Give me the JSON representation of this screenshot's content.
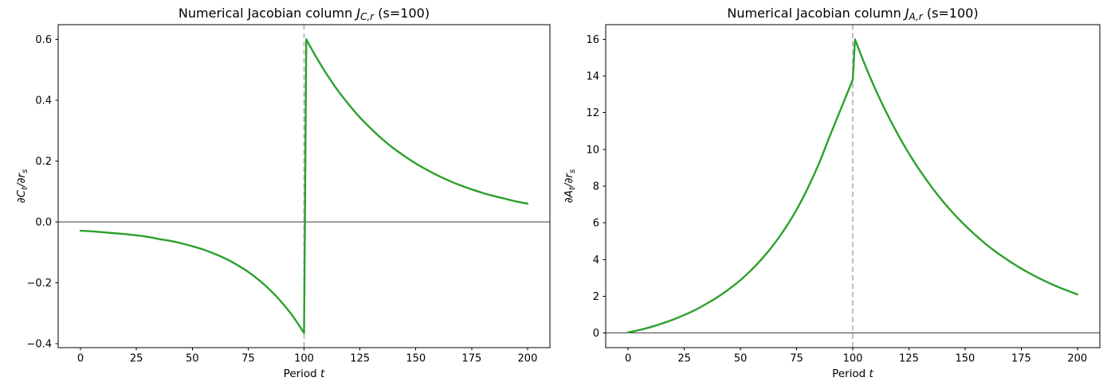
{
  "figure": {
    "background": "#ffffff",
    "accent_line_color": "#2ca02c",
    "vline_color": "#b3b3b3",
    "zero_line_color": "#3d3d3d"
  },
  "chart_data": [
    {
      "id": "consumption-jacobian",
      "type": "line",
      "title_text": "Numerical Jacobian column J_C,r (s=100)",
      "title_parts": [
        {
          "text": "Numerical Jacobian column ",
          "style": "regular"
        },
        {
          "text": "J",
          "style": "italic"
        },
        {
          "text": "C,r",
          "style": "sub-italic"
        },
        {
          "text": " (s=100)",
          "style": "regular"
        }
      ],
      "xlabel_text": "Period t",
      "xlabel_parts": [
        {
          "text": "Period ",
          "style": "regular"
        },
        {
          "text": "t",
          "style": "italic"
        }
      ],
      "ylabel_text": "∂C_t/∂r_s",
      "ylabel_parts": [
        {
          "text": "∂C",
          "style": "italic"
        },
        {
          "text": "t",
          "style": "sub-italic"
        },
        {
          "text": "/∂r",
          "style": "italic"
        },
        {
          "text": "s",
          "style": "sub-italic"
        }
      ],
      "xlim": [
        -10,
        210
      ],
      "ylim": [
        -0.413,
        0.648
      ],
      "xticks": {
        "values": [
          0,
          25,
          50,
          75,
          100,
          125,
          150,
          175,
          200
        ],
        "labels": [
          "0",
          "25",
          "50",
          "75",
          "100",
          "125",
          "150",
          "175",
          "200"
        ]
      },
      "yticks": {
        "values": [
          0.6,
          0.4,
          0.2,
          0.0,
          -0.2,
          -0.4
        ],
        "labels": [
          "0.6",
          "0.4",
          "0.2",
          "0.0",
          "−0.2",
          "−0.4"
        ]
      },
      "grid": false,
      "legend": null,
      "vline": {
        "x": 100
      },
      "zero_line": true,
      "line_color": "#2ca02c",
      "series": [
        {
          "name": "dC_t/dr_s (s=100)",
          "segments": [
            {
              "smooth": true,
              "points": [
                [
                  0,
                  -0.029
                ],
                [
                  5,
                  -0.031
                ],
                [
                  10,
                  -0.034
                ],
                [
                  15,
                  -0.037
                ],
                [
                  20,
                  -0.04
                ],
                [
                  25,
                  -0.044
                ],
                [
                  30,
                  -0.049
                ],
                [
                  35,
                  -0.056
                ],
                [
                  40,
                  -0.062
                ],
                [
                  45,
                  -0.07
                ],
                [
                  50,
                  -0.08
                ],
                [
                  55,
                  -0.091
                ],
                [
                  60,
                  -0.105
                ],
                [
                  65,
                  -0.121
                ],
                [
                  70,
                  -0.141
                ],
                [
                  75,
                  -0.164
                ],
                [
                  80,
                  -0.192
                ],
                [
                  85,
                  -0.225
                ],
                [
                  90,
                  -0.264
                ],
                [
                  95,
                  -0.31
                ],
                [
                  100,
                  -0.365
                ]
              ]
            },
            {
              "smooth": false,
              "points": [
                [
                  100,
                  -0.365
                ],
                [
                  101,
                  0.6
                ]
              ]
            },
            {
              "smooth": true,
              "points": [
                [
                  101,
                  0.6
                ],
                [
                  105,
                  0.547
                ],
                [
                  110,
                  0.487
                ],
                [
                  115,
                  0.433
                ],
                [
                  120,
                  0.386
                ],
                [
                  125,
                  0.343
                ],
                [
                  130,
                  0.306
                ],
                [
                  135,
                  0.272
                ],
                [
                  140,
                  0.242
                ],
                [
                  145,
                  0.216
                ],
                [
                  150,
                  0.192
                ],
                [
                  155,
                  0.171
                ],
                [
                  160,
                  0.152
                ],
                [
                  165,
                  0.135
                ],
                [
                  170,
                  0.12
                ],
                [
                  175,
                  0.107
                ],
                [
                  180,
                  0.095
                ],
                [
                  185,
                  0.085
                ],
                [
                  190,
                  0.076
                ],
                [
                  195,
                  0.067
                ],
                [
                  200,
                  0.06
                ]
              ]
            }
          ]
        }
      ]
    },
    {
      "id": "assets-jacobian",
      "type": "line",
      "title_text": "Numerical Jacobian column J_A,r (s=100)",
      "title_parts": [
        {
          "text": "Numerical Jacobian column ",
          "style": "regular"
        },
        {
          "text": "J",
          "style": "italic"
        },
        {
          "text": "A,r",
          "style": "sub-italic"
        },
        {
          "text": " (s=100)",
          "style": "regular"
        }
      ],
      "xlabel_text": "Period t",
      "xlabel_parts": [
        {
          "text": "Period ",
          "style": "regular"
        },
        {
          "text": "t",
          "style": "italic"
        }
      ],
      "ylabel_text": "∂A_t/∂r_s",
      "ylabel_parts": [
        {
          "text": "∂A",
          "style": "italic"
        },
        {
          "text": "t",
          "style": "sub-italic"
        },
        {
          "text": "/∂r",
          "style": "italic"
        },
        {
          "text": "s",
          "style": "sub-italic"
        }
      ],
      "xlim": [
        -10,
        210
      ],
      "ylim": [
        -0.8,
        16.8
      ],
      "xticks": {
        "values": [
          0,
          25,
          50,
          75,
          100,
          125,
          150,
          175,
          200
        ],
        "labels": [
          "0",
          "25",
          "50",
          "75",
          "100",
          "125",
          "150",
          "175",
          "200"
        ]
      },
      "yticks": {
        "values": [
          16,
          14,
          12,
          10,
          8,
          6,
          4,
          2,
          0
        ],
        "labels": [
          "16",
          "14",
          "12",
          "10",
          "8",
          "6",
          "4",
          "2",
          "0"
        ]
      },
      "grid": false,
      "legend": null,
      "vline": {
        "x": 100
      },
      "zero_line": true,
      "line_color": "#2ca02c",
      "series": [
        {
          "name": "dA_t/dr_s (s=100)",
          "segments": [
            {
              "smooth": true,
              "points": [
                [
                  0,
                  0.03
                ],
                [
                  5,
                  0.16
                ],
                [
                  10,
                  0.32
                ],
                [
                  15,
                  0.51
                ],
                [
                  20,
                  0.73
                ],
                [
                  25,
                  0.98
                ],
                [
                  30,
                  1.26
                ],
                [
                  35,
                  1.6
                ],
                [
                  40,
                  1.97
                ],
                [
                  45,
                  2.4
                ],
                [
                  50,
                  2.88
                ],
                [
                  55,
                  3.45
                ],
                [
                  60,
                  4.1
                ],
                [
                  65,
                  4.85
                ],
                [
                  70,
                  5.72
                ],
                [
                  75,
                  6.72
                ],
                [
                  80,
                  7.9
                ],
                [
                  85,
                  9.25
                ],
                [
                  90,
                  10.8
                ],
                [
                  95,
                  12.3
                ],
                [
                  100,
                  13.8
                ]
              ]
            },
            {
              "smooth": false,
              "points": [
                [
                  100,
                  13.8
                ],
                [
                  101,
                  16.0
                ]
              ]
            },
            {
              "smooth": true,
              "points": [
                [
                  101,
                  16.0
                ],
                [
                  105,
                  14.74
                ],
                [
                  110,
                  13.3
                ],
                [
                  115,
                  12.01
                ],
                [
                  120,
                  10.84
                ],
                [
                  125,
                  9.78
                ],
                [
                  130,
                  8.83
                ],
                [
                  135,
                  7.97
                ],
                [
                  140,
                  7.19
                ],
                [
                  145,
                  6.49
                ],
                [
                  150,
                  5.86
                ],
                [
                  155,
                  5.29
                ],
                [
                  160,
                  4.77
                ],
                [
                  165,
                  4.31
                ],
                [
                  170,
                  3.89
                ],
                [
                  175,
                  3.51
                ],
                [
                  180,
                  3.17
                ],
                [
                  185,
                  2.86
                ],
                [
                  190,
                  2.58
                ],
                [
                  195,
                  2.33
                ],
                [
                  200,
                  2.1
                ]
              ]
            }
          ]
        }
      ]
    }
  ]
}
